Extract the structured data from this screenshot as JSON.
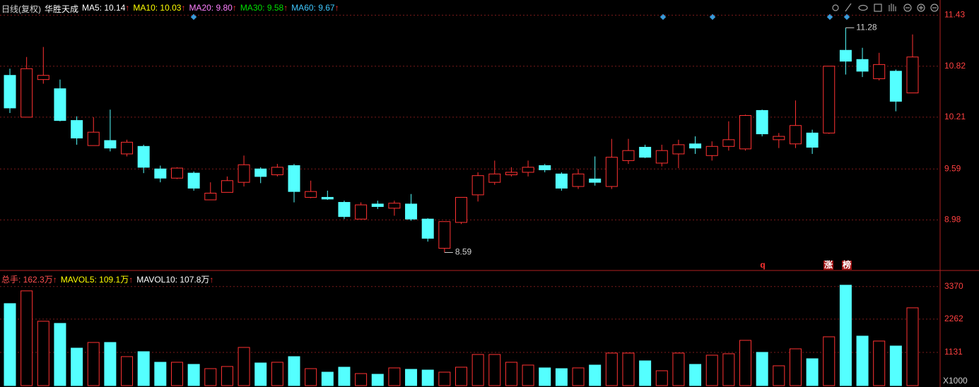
{
  "chart_data": [
    {
      "type": "candlestick",
      "arrow": "↑",
      "header": [
        {
          "text": "日线(复权)",
          "color": "#d8d8d8"
        },
        {
          "text": "华胜天成",
          "color": "#ffffff"
        },
        {
          "text": "MA5: 10.14",
          "color": "#ffffff"
        },
        {
          "text": "MA10: 10.03",
          "color": "#ffff00"
        },
        {
          "text": "MA20: 9.80",
          "color": "#ff80ff"
        },
        {
          "text": "MA30: 9.58",
          "color": "#00e000"
        },
        {
          "text": "MA60: 9.67",
          "color": "#40c8ff"
        }
      ],
      "up_color": "#ff3232",
      "down_color": "#54ffff",
      "open": [
        10.71,
        10.21,
        10.66,
        10.55,
        10.17,
        9.87,
        9.93,
        9.77,
        9.86,
        9.59,
        9.48,
        9.54,
        9.22,
        9.31,
        9.43,
        9.59,
        9.52,
        9.63,
        9.25,
        9.25,
        9.19,
        8.99,
        9.17,
        9.12,
        9.17,
        8.99,
        8.64,
        8.95,
        9.28,
        9.43,
        9.52,
        9.55,
        9.63,
        9.53,
        9.38,
        9.47,
        9.38,
        9.69,
        9.85,
        9.66,
        9.77,
        9.89,
        9.75,
        9.86,
        9.83,
        10.29,
        9.94,
        9.89,
        10.02,
        10.02,
        11.01,
        10.9,
        10.67,
        10.76,
        10.5
      ],
      "high": [
        10.79,
        10.93,
        11.05,
        10.66,
        10.22,
        10.21,
        10.3,
        9.94,
        9.88,
        9.63,
        9.61,
        9.56,
        9.43,
        9.5,
        9.75,
        9.61,
        9.65,
        9.65,
        9.45,
        9.33,
        9.21,
        9.19,
        9.21,
        9.21,
        9.29,
        9.0,
        8.96,
        9.25,
        9.55,
        9.69,
        9.61,
        9.69,
        9.65,
        9.55,
        9.59,
        9.74,
        9.95,
        9.95,
        9.88,
        9.88,
        9.94,
        9.98,
        9.92,
        10.16,
        10.24,
        10.3,
        10.02,
        10.41,
        10.06,
        10.82,
        11.28,
        11.04,
        10.98,
        10.78,
        11.2
      ],
      "low": [
        10.26,
        10.21,
        10.61,
        10.16,
        9.88,
        9.87,
        9.8,
        9.74,
        9.54,
        9.43,
        9.47,
        9.33,
        9.22,
        9.31,
        9.38,
        9.42,
        9.5,
        9.19,
        9.24,
        9.22,
        8.99,
        8.99,
        9.11,
        9.03,
        8.97,
        8.72,
        8.59,
        8.93,
        9.2,
        9.4,
        9.5,
        9.5,
        9.55,
        9.33,
        9.35,
        9.39,
        9.35,
        9.65,
        9.72,
        9.62,
        9.6,
        9.77,
        9.69,
        9.81,
        9.81,
        9.98,
        9.84,
        9.84,
        9.77,
        10.01,
        10.72,
        10.69,
        10.65,
        10.28,
        10.5
      ],
      "close": [
        10.32,
        10.79,
        10.71,
        10.17,
        9.96,
        10.03,
        9.84,
        9.91,
        9.61,
        9.48,
        9.6,
        9.36,
        9.3,
        9.45,
        9.64,
        9.5,
        9.61,
        9.32,
        9.32,
        9.23,
        9.02,
        9.16,
        9.14,
        9.18,
        8.99,
        8.76,
        8.96,
        9.25,
        9.51,
        9.53,
        9.55,
        9.61,
        9.58,
        9.36,
        9.53,
        9.43,
        9.73,
        9.81,
        9.73,
        9.81,
        9.88,
        9.84,
        9.86,
        9.94,
        10.23,
        10.01,
        9.98,
        10.11,
        9.85,
        10.82,
        10.88,
        10.76,
        10.84,
        10.4,
        10.93
      ],
      "annotations": [
        {
          "value": 11.28
        },
        {
          "value": 8.59
        }
      ],
      "markers": [
        "q",
        "涨",
        "榜"
      ],
      "ylim": [
        8.4,
        11.57
      ],
      "yticks": [
        11.43,
        10.82,
        10.21,
        9.59,
        8.98
      ],
      "grid": true
    },
    {
      "type": "bar",
      "arrow": "↑",
      "header": [
        {
          "text": "总手: 162.3万",
          "color": "#ff5050"
        },
        {
          "text": "MAVOL5: 109.1万",
          "color": "#ffff00"
        },
        {
          "text": "MAVOL10: 107.8万",
          "color": "#ffffff"
        }
      ],
      "values": [
        2791,
        3224,
        2190,
        2117,
        1275,
        1468,
        1468,
        986,
        1155,
        794,
        794,
        722,
        577,
        650,
        1299,
        770,
        794,
        986,
        577,
        457,
        626,
        409,
        385,
        602,
        553,
        529,
        457,
        626,
        1059,
        1059,
        794,
        698,
        602,
        577,
        602,
        698,
        1107,
        1107,
        842,
        505,
        1107,
        722,
        1035,
        1083,
        1540,
        1131,
        674,
        1251,
        914,
        1660,
        3417,
        1684,
        1516,
        1347,
        2647
      ],
      "unit_label": "X1000",
      "ylim": [
        0,
        3870
      ],
      "yticks": [
        3370,
        2262,
        1131
      ],
      "grid": true
    }
  ]
}
